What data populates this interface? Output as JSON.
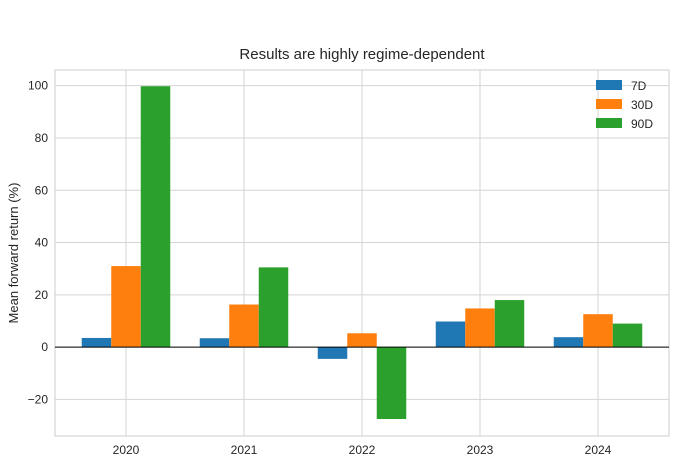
{
  "chart_data": {
    "type": "bar",
    "title": "Results are highly regime-dependent",
    "xlabel": "",
    "ylabel": "Mean forward return (%)",
    "categories": [
      "2020",
      "2021",
      "2022",
      "2023",
      "2024"
    ],
    "ylim": [
      -34,
      106
    ],
    "yticks": [
      100,
      80,
      60,
      40,
      20,
      0,
      -20
    ],
    "ytick_labels": [
      "100",
      "80",
      "60",
      "40",
      "20",
      "0",
      "−20"
    ],
    "grid": true,
    "legend_position": "top-right",
    "series": [
      {
        "name": "7D",
        "color": "#1f77b4",
        "values": [
          3.5,
          3.4,
          -4.5,
          9.8,
          3.8
        ]
      },
      {
        "name": "30D",
        "color": "#ff7f0e",
        "values": [
          31.0,
          16.3,
          5.3,
          14.8,
          12.6
        ]
      },
      {
        "name": "90D",
        "color": "#2ca02c",
        "values": [
          99.8,
          30.5,
          -27.5,
          18.0,
          9.0
        ]
      }
    ]
  }
}
